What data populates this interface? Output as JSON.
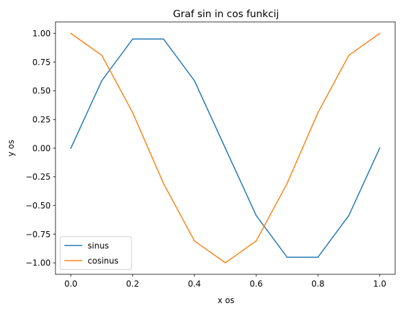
{
  "chart_data": {
    "type": "line",
    "title": "Graf sin in cos funkcij",
    "xlabel": "x os",
    "ylabel": "y os",
    "x": [
      0.0,
      0.1,
      0.2,
      0.3,
      0.4,
      0.5,
      0.6,
      0.7,
      0.8,
      0.9,
      1.0
    ],
    "series": [
      {
        "name": "sinus",
        "color": "#1f77b4",
        "values": [
          0.0,
          0.5878,
          0.9511,
          0.9511,
          0.5878,
          0.0,
          -0.5878,
          -0.9511,
          -0.9511,
          -0.5878,
          0.0
        ]
      },
      {
        "name": "cosinus",
        "color": "#ff7f0e",
        "values": [
          1.0,
          0.809,
          0.309,
          -0.309,
          -0.809,
          -1.0,
          -0.809,
          -0.309,
          0.309,
          0.809,
          1.0
        ]
      }
    ],
    "xlim": [
      -0.05,
      1.05
    ],
    "ylim": [
      -1.1,
      1.1
    ],
    "x_ticks": [
      0.0,
      0.2,
      0.4,
      0.6,
      0.8,
      1.0
    ],
    "x_tick_labels": [
      "0.0",
      "0.2",
      "0.4",
      "0.6",
      "0.8",
      "1.0"
    ],
    "y_ticks": [
      1.0,
      0.75,
      0.5,
      0.25,
      0.0,
      -0.25,
      -0.5,
      -0.75,
      -1.0
    ],
    "y_tick_labels": [
      "1.00",
      "0.75",
      "0.50",
      "0.25",
      "0.00",
      "−0.25",
      "−0.50",
      "−0.75",
      "−1.00"
    ],
    "grid": false,
    "legend_position": "lower-left"
  }
}
